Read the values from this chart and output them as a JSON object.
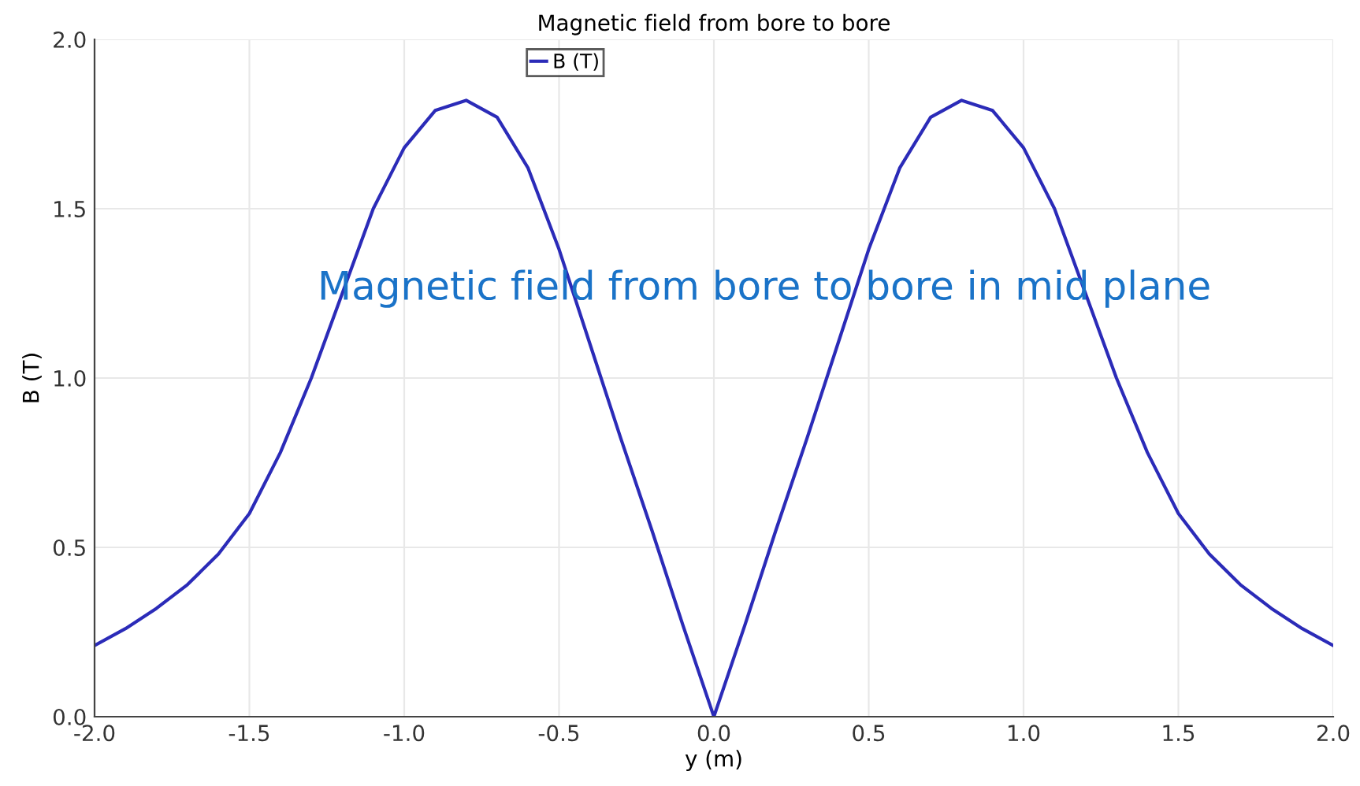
{
  "chart_data": {
    "type": "line",
    "title": "Magnetic field from bore to bore",
    "xlabel": "y (m)",
    "ylabel": "B (T)",
    "x": [
      -2.0,
      -1.9,
      -1.8,
      -1.7,
      -1.6,
      -1.5,
      -1.4,
      -1.3,
      -1.2,
      -1.1,
      -1.0,
      -0.9,
      -0.8,
      -0.7,
      -0.6,
      -0.5,
      -0.4,
      -0.3,
      -0.2,
      -0.1,
      0.0,
      0.1,
      0.2,
      0.3,
      0.4,
      0.5,
      0.6,
      0.7,
      0.8,
      0.9,
      1.0,
      1.1,
      1.2,
      1.3,
      1.4,
      1.5,
      1.6,
      1.7,
      1.8,
      1.9,
      2.0
    ],
    "series": [
      {
        "name": "B (T)",
        "color": "#2b2bb8",
        "values": [
          0.21,
          0.26,
          0.32,
          0.39,
          0.48,
          0.6,
          0.78,
          1.0,
          1.25,
          1.5,
          1.68,
          1.79,
          1.82,
          1.77,
          1.62,
          1.38,
          1.1,
          0.82,
          0.55,
          0.27,
          0.0,
          0.27,
          0.55,
          0.82,
          1.1,
          1.38,
          1.62,
          1.77,
          1.82,
          1.79,
          1.68,
          1.5,
          1.25,
          1.0,
          0.78,
          0.6,
          0.48,
          0.39,
          0.32,
          0.26,
          0.21
        ]
      }
    ],
    "xlim": [
      -2.0,
      2.0
    ],
    "ylim": [
      0.0,
      2.0
    ],
    "xticks": [
      {
        "value": -2.0,
        "label": "-2.0"
      },
      {
        "value": -1.5,
        "label": "-1.5"
      },
      {
        "value": -1.0,
        "label": "-1.0"
      },
      {
        "value": -0.5,
        "label": "-0.5"
      },
      {
        "value": 0.0,
        "label": "0.0"
      },
      {
        "value": 0.5,
        "label": "0.5"
      },
      {
        "value": 1.0,
        "label": "1.0"
      },
      {
        "value": 1.5,
        "label": "1.5"
      },
      {
        "value": 2.0,
        "label": "2.0"
      }
    ],
    "yticks": [
      {
        "value": 0.0,
        "label": "0.0"
      },
      {
        "value": 0.5,
        "label": "0.5"
      },
      {
        "value": 1.0,
        "label": "1.0"
      },
      {
        "value": 1.5,
        "label": "1.5"
      },
      {
        "value": 2.0,
        "label": "2.0"
      }
    ],
    "grid": true,
    "legend": "top",
    "marker": "none",
    "line_style": "solid",
    "annotations": [
      "Magnetic field from bore to bore in mid plane"
    ]
  }
}
